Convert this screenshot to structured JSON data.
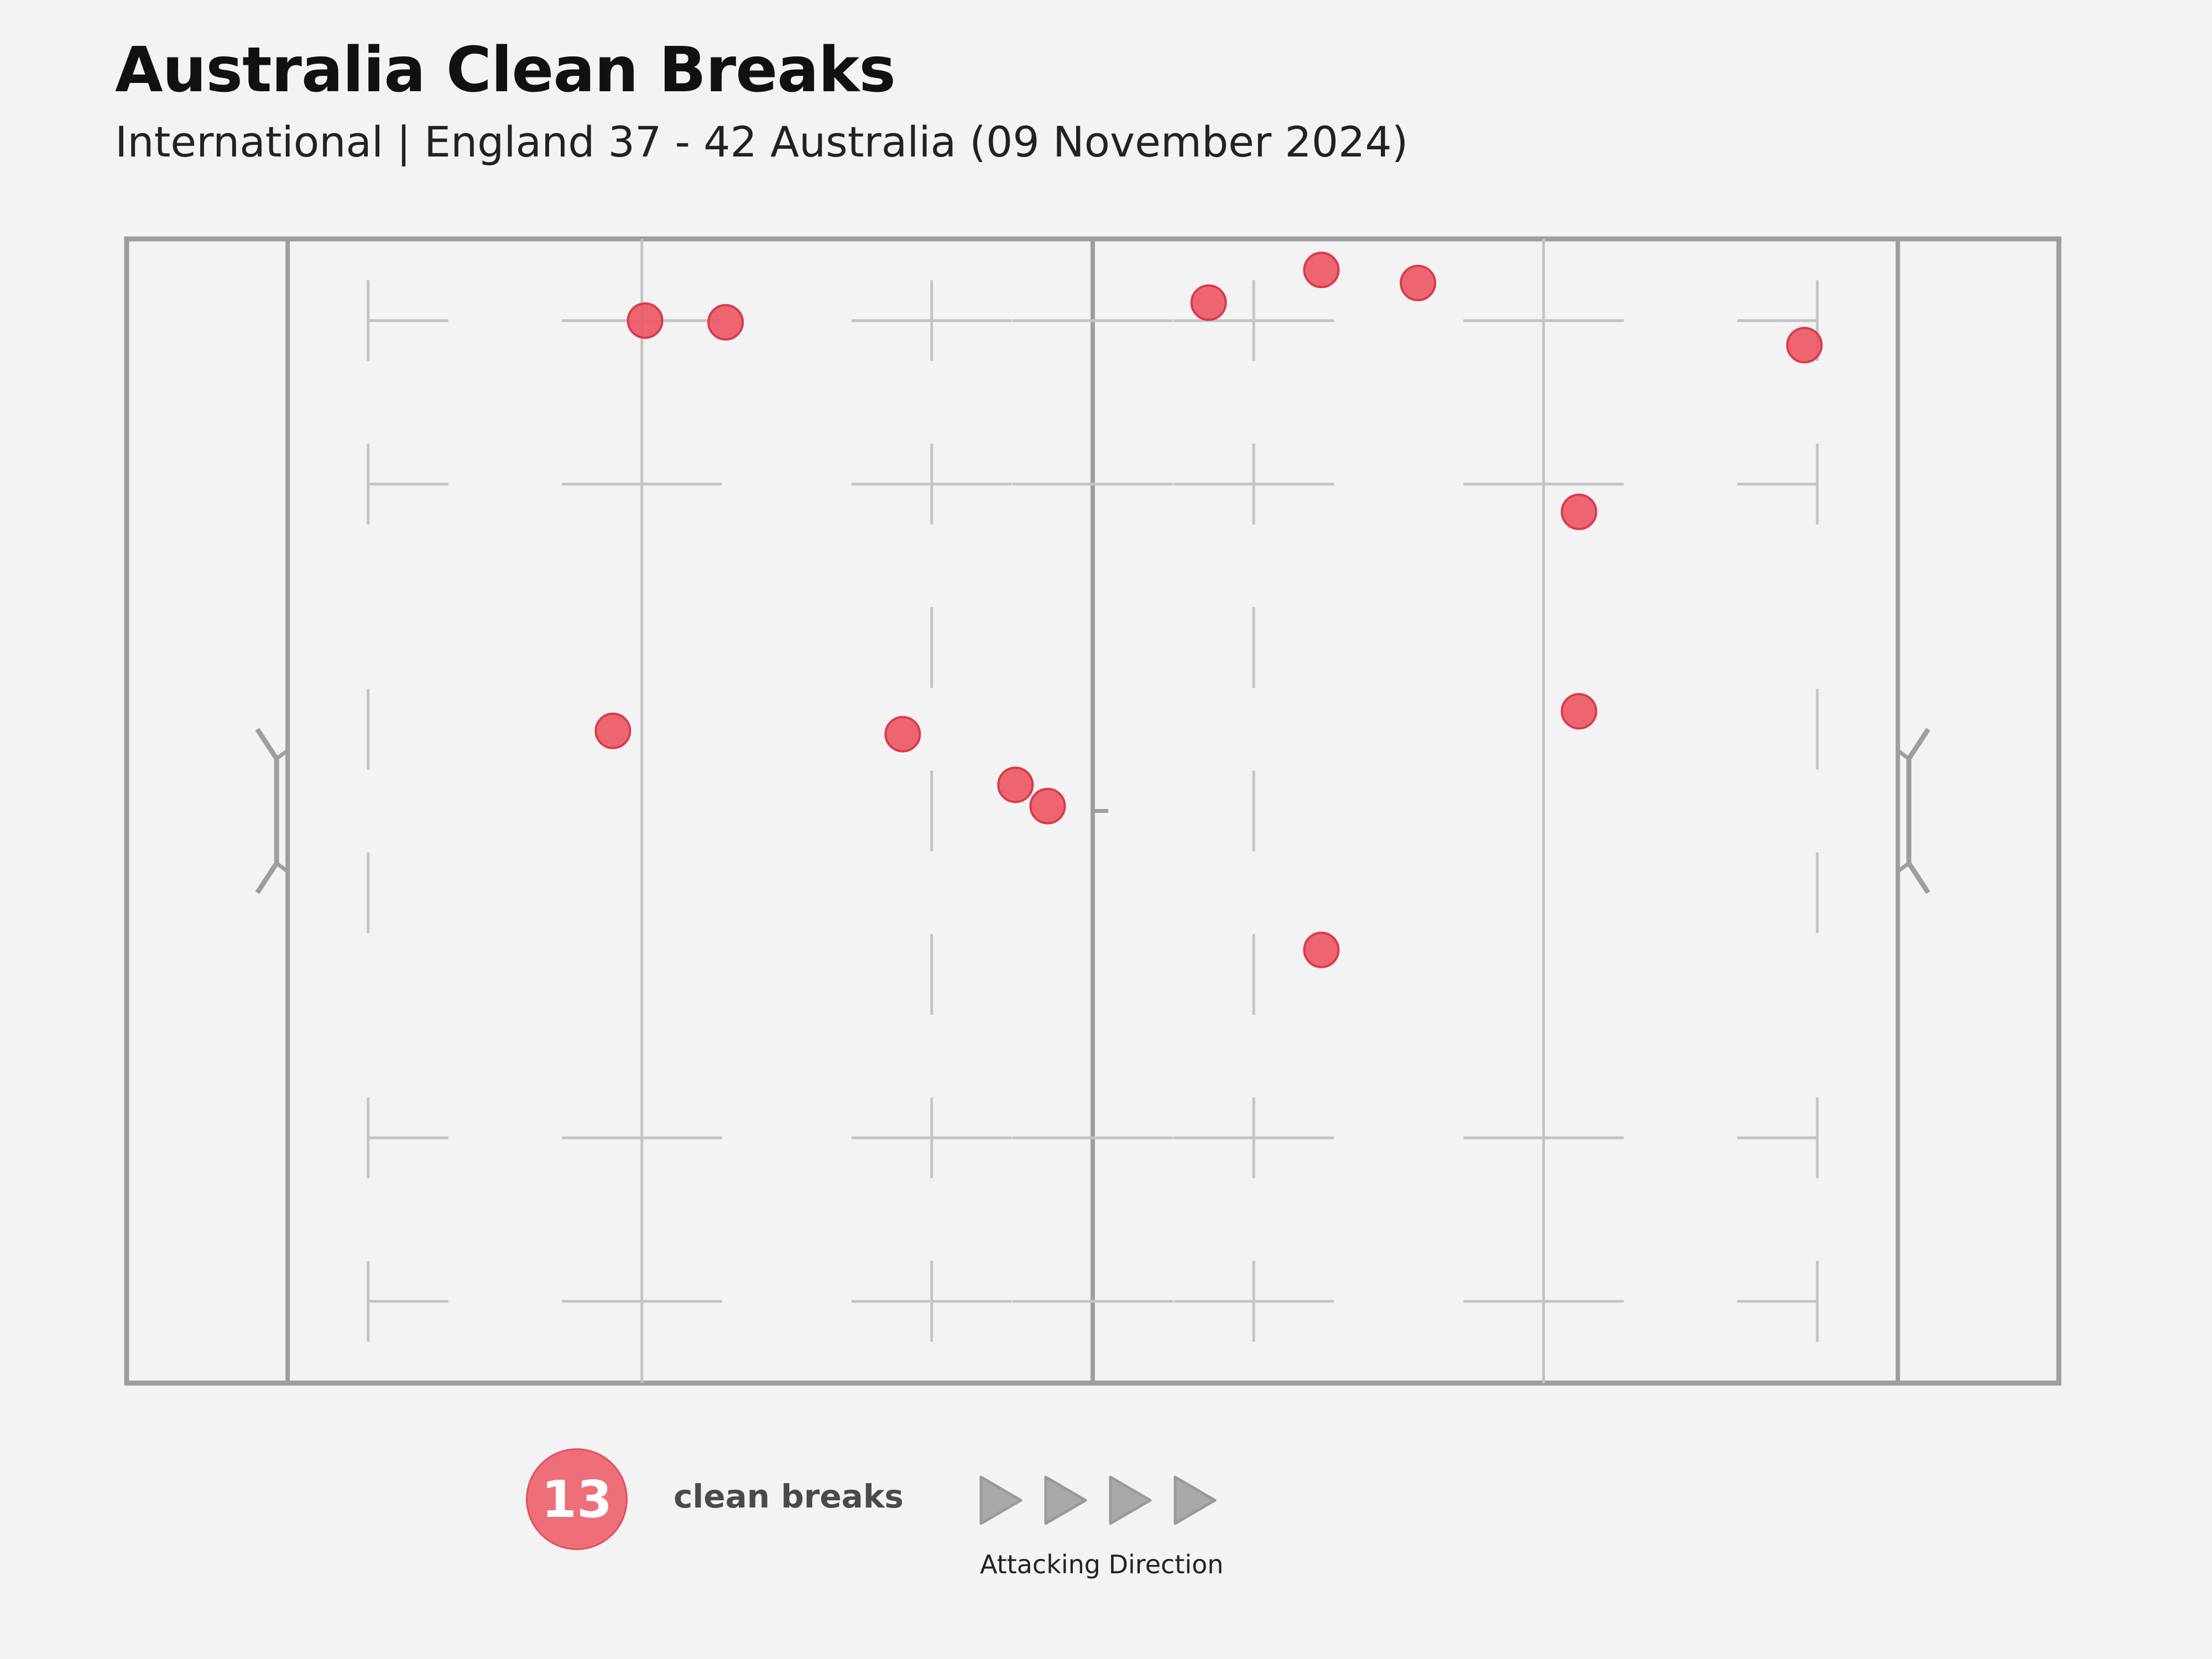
{
  "header": {
    "title": "Australia Clean Breaks",
    "subtitle": "International | England 37 - 42 Australia (09 November 2024)"
  },
  "legend": {
    "count": "13",
    "count_label": "clean breaks",
    "direction_label": "Attacking Direction"
  },
  "colors": {
    "background": "#f3f3f3",
    "pitch_lines": "#9e9e9e",
    "minor_lines": "#c4c4c4",
    "point_fill": "#ec5563",
    "point_stroke": "#d93a4c",
    "arrow_fill": "#a9a9a9"
  },
  "chart_data": {
    "type": "scatter",
    "title": "Australia Clean Breaks",
    "subtitle": "International | England 37 - 42 Australia (09 November 2024)",
    "xlabel": "",
    "ylabel": "",
    "xlim": [
      -10,
      110
    ],
    "ylim": [
      0,
      70
    ],
    "grid": false,
    "legend": "bottom",
    "series": [
      {
        "name": "clean breaks",
        "points": [
          {
            "x": 22.2,
            "y": 5.0
          },
          {
            "x": 27.2,
            "y": 5.1
          },
          {
            "x": 20.2,
            "y": 30.1
          },
          {
            "x": 38.2,
            "y": 30.3
          },
          {
            "x": 45.2,
            "y": 33.4
          },
          {
            "x": 47.2,
            "y": 34.7
          },
          {
            "x": 57.2,
            "y": 3.9
          },
          {
            "x": 64.2,
            "y": 1.9
          },
          {
            "x": 70.2,
            "y": 2.7
          },
          {
            "x": 64.2,
            "y": 43.5
          },
          {
            "x": 80.2,
            "y": 16.7
          },
          {
            "x": 80.2,
            "y": 28.9
          },
          {
            "x": 94.2,
            "y": 6.5
          }
        ]
      }
    ]
  }
}
